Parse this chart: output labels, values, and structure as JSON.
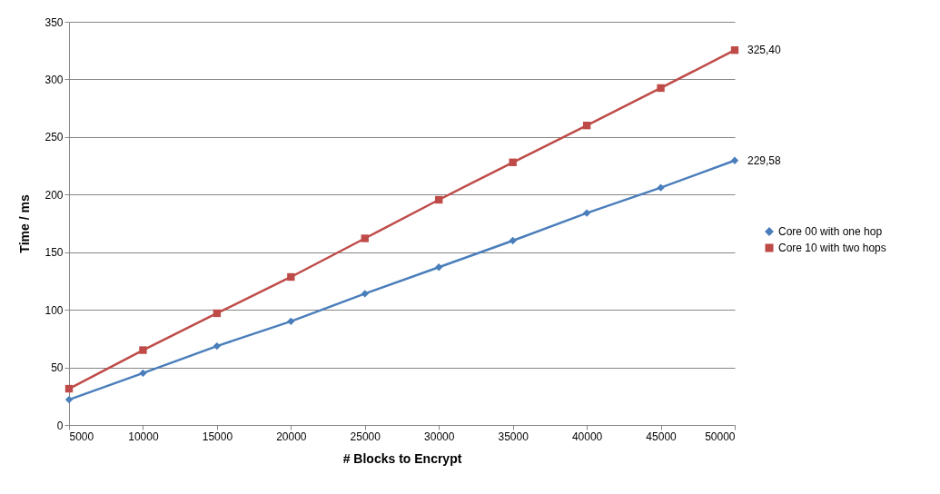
{
  "chart_data": {
    "type": "line",
    "xlabel": "# Blocks to Encrypt",
    "ylabel": "Time / ms",
    "x": [
      5000,
      10000,
      15000,
      20000,
      25000,
      30000,
      35000,
      40000,
      45000,
      50000
    ],
    "series": [
      {
        "name": "Core 00 with one hop",
        "color": "#4a7ebb",
        "marker": "diamond",
        "values": [
          22,
          45,
          68.5,
          90,
          114,
          137,
          160,
          184,
          206,
          229.58
        ],
        "value_labels": [
          null,
          null,
          null,
          null,
          null,
          null,
          null,
          null,
          null,
          "229,58"
        ]
      },
      {
        "name": "Core 10 with two hops",
        "color": "#be4b48",
        "marker": "square",
        "values": [
          31.5,
          65,
          97,
          128.5,
          162,
          195.5,
          228,
          260,
          292.5,
          325.4
        ],
        "value_labels": [
          null,
          null,
          null,
          null,
          null,
          null,
          null,
          null,
          null,
          "325,40"
        ]
      }
    ],
    "xlim": [
      5000,
      50000
    ],
    "xticks": [
      5000,
      10000,
      15000,
      20000,
      25000,
      30000,
      35000,
      40000,
      45000,
      50000
    ],
    "ylim": [
      0,
      350
    ],
    "yticks": [
      0,
      50,
      100,
      150,
      200,
      250,
      300,
      350
    ],
    "grid": "y",
    "legend": "right",
    "line_style": "solid"
  }
}
